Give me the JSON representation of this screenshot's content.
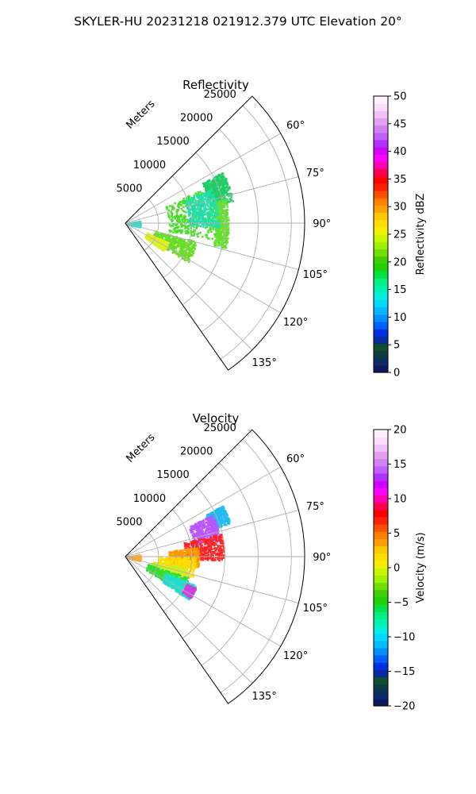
{
  "figure": {
    "title": "SKYLER-HU  20231218  021912.379 UTC Elevation 20°"
  },
  "chart_data": [
    {
      "type": "heatmap",
      "projection": "polar-sector",
      "title": "Reflectivity",
      "radial_axis_label": "Meters",
      "radial_ticks": [
        5000,
        10000,
        15000,
        20000,
        25000
      ],
      "radial_tick_labels": [
        "5000",
        "10000",
        "15000",
        "20000",
        "25000"
      ],
      "radial_range": [
        0,
        27000
      ],
      "azimuth_range_deg": [
        45,
        145
      ],
      "azimuth_ticks_deg": [
        60,
        75,
        90,
        105,
        120,
        135
      ],
      "azimuth_tick_labels": [
        "60°",
        "75°",
        "90°",
        "105°",
        "120°",
        "135°"
      ],
      "grid": true,
      "colorbar": {
        "label": "Reflectivity dBZ",
        "range": [
          0,
          50
        ],
        "ticks": [
          0,
          5,
          10,
          15,
          20,
          25,
          30,
          35,
          40,
          45,
          50
        ],
        "tick_labels": [
          "0",
          "5",
          "10",
          "15",
          "20",
          "25",
          "30",
          "35",
          "40",
          "45",
          "50"
        ],
        "colors": [
          "#0a1a5c",
          "#0d2b6a",
          "#0e3a40",
          "#0f5030",
          "#0a2aa0",
          "#0030e0",
          "#0060ff",
          "#0090ff",
          "#00b8ff",
          "#00d8ff",
          "#00f0e0",
          "#00f0b0",
          "#00f080",
          "#00e040",
          "#20d000",
          "#40d000",
          "#70e000",
          "#a0f000",
          "#c8f800",
          "#f0f000",
          "#ffe000",
          "#ffc800",
          "#ffa000",
          "#ff8000",
          "#ff5000",
          "#ff2000",
          "#ff0000",
          "#ff0050",
          "#ff00b0",
          "#ff00ff",
          "#d000ff",
          "#b030ff",
          "#c060ff",
          "#d080f0",
          "#e0a0f0",
          "#f0c0f8",
          "#f8e0fc",
          "#fff0ff"
        ]
      },
      "echo_regions": [
        {
          "label": "core",
          "az_deg": [
            66,
            100
          ],
          "r": [
            6500,
            14800
          ],
          "color": "#44dd22"
        },
        {
          "label": "north-edge",
          "az_deg": [
            62,
            78
          ],
          "r": [
            13000,
            16500
          ],
          "color": "#22cc66"
        },
        {
          "label": "outer-rim",
          "az_deg": [
            76,
            104
          ],
          "r": [
            13500,
            15500
          ],
          "color": "#66e030"
        },
        {
          "label": "south-band",
          "az_deg": [
            104,
            122
          ],
          "r": [
            4500,
            11000
          ],
          "color": "#66dd22"
        },
        {
          "label": "south-yellow",
          "az_deg": [
            114,
            126
          ],
          "r": [
            3500,
            7000
          ],
          "color": "#ddee22"
        },
        {
          "label": "near-range",
          "az_deg": [
            80,
            104
          ],
          "r": [
            100,
            2200
          ],
          "color": "#33ddcc"
        },
        {
          "label": "cyan-patches",
          "az_deg": [
            68,
            92
          ],
          "r": [
            9500,
            14000
          ],
          "color": "#22ddaa"
        }
      ]
    },
    {
      "type": "heatmap",
      "projection": "polar-sector",
      "title": "Velocity",
      "radial_axis_label": "Meters",
      "radial_ticks": [
        5000,
        10000,
        15000,
        20000,
        25000
      ],
      "radial_tick_labels": [
        "5000",
        "10000",
        "15000",
        "20000",
        "25000"
      ],
      "radial_range": [
        0,
        27000
      ],
      "azimuth_range_deg": [
        45,
        145
      ],
      "azimuth_ticks_deg": [
        60,
        75,
        90,
        105,
        120,
        135
      ],
      "azimuth_tick_labels": [
        "60°",
        "75°",
        "90°",
        "105°",
        "120°",
        "135°"
      ],
      "grid": true,
      "colorbar": {
        "label": "Velocity (m/s)",
        "range": [
          -20,
          20
        ],
        "ticks": [
          -20,
          -15,
          -10,
          -5,
          0,
          5,
          10,
          15,
          20
        ],
        "tick_labels": [
          "−20",
          "−15",
          "−10",
          "−5",
          "0",
          "5",
          "10",
          "15",
          "20"
        ],
        "colors": [
          "#0a1a5c",
          "#0d2b6a",
          "#0e3a40",
          "#0f5030",
          "#0a2aa0",
          "#0030e0",
          "#0060ff",
          "#0090ff",
          "#00b8ff",
          "#00d8ff",
          "#00f0e0",
          "#00f0b0",
          "#00f080",
          "#00e040",
          "#20d000",
          "#40d000",
          "#70e000",
          "#a0f000",
          "#c8f800",
          "#f0f000",
          "#ffe000",
          "#ffc800",
          "#ffa000",
          "#ff8000",
          "#ff5000",
          "#ff2000",
          "#ff0000",
          "#ff0050",
          "#ff00b0",
          "#ff00ff",
          "#d000ff",
          "#b030ff",
          "#c060ff",
          "#d080f0",
          "#e0a0f0",
          "#f0c0f8",
          "#f8e0fc",
          "#fff0ff"
        ]
      },
      "echo_regions": [
        {
          "label": "far-north-cyan",
          "az_deg": [
            62,
            72
          ],
          "r": [
            13500,
            16500
          ],
          "color": "#22bbee"
        },
        {
          "label": "north-purple",
          "az_deg": [
            64,
            80
          ],
          "r": [
            10500,
            14500
          ],
          "color": "#bb55ff"
        },
        {
          "label": "red-band",
          "az_deg": [
            76,
            92
          ],
          "r": [
            9000,
            14800
          ],
          "color": "#ff2222"
        },
        {
          "label": "orange-band",
          "az_deg": [
            82,
            98
          ],
          "r": [
            6500,
            11000
          ],
          "color": "#ff9900"
        },
        {
          "label": "yellow-core",
          "az_deg": [
            90,
            108
          ],
          "r": [
            5000,
            10500
          ],
          "color": "#ffdd00"
        },
        {
          "label": "yellow-green",
          "az_deg": [
            100,
            114
          ],
          "r": [
            4000,
            9500
          ],
          "color": "#ccee22"
        },
        {
          "label": "green-south",
          "az_deg": [
            108,
            122
          ],
          "r": [
            3500,
            10000
          ],
          "color": "#33dd33"
        },
        {
          "label": "cyan-south",
          "az_deg": [
            112,
            124
          ],
          "r": [
            6500,
            11500
          ],
          "color": "#22ddcc"
        },
        {
          "label": "purple-south",
          "az_deg": [
            114,
            122
          ],
          "r": [
            10000,
            11500
          ],
          "color": "#cc44dd"
        },
        {
          "label": "near-range",
          "az_deg": [
            80,
            104
          ],
          "r": [
            100,
            2200
          ],
          "color": "#ffaa22"
        }
      ]
    }
  ]
}
